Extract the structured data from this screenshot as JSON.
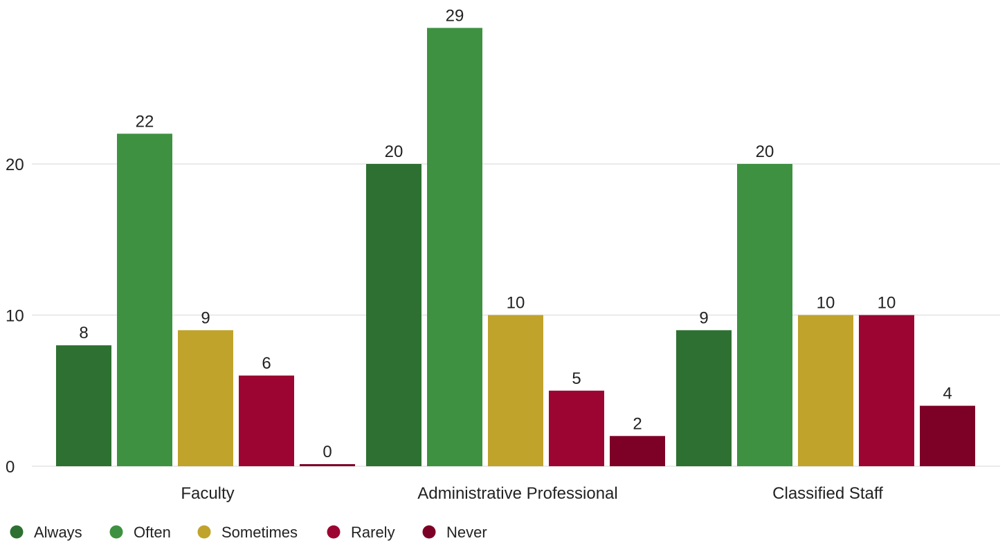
{
  "chart_data": {
    "type": "bar",
    "categories": [
      "Faculty",
      "Administrative Professional",
      "Classified Staff"
    ],
    "series": [
      {
        "name": "Always",
        "color": "#2e7031",
        "values": [
          8,
          20,
          9
        ]
      },
      {
        "name": "Often",
        "color": "#3e9140",
        "values": [
          22,
          29,
          20
        ]
      },
      {
        "name": "Sometimes",
        "color": "#c0a32b",
        "values": [
          9,
          10,
          10
        ]
      },
      {
        "name": "Rarely",
        "color": "#9c0431",
        "values": [
          6,
          5,
          10
        ]
      },
      {
        "name": "Never",
        "color": "#7d0127",
        "values": [
          0,
          2,
          4
        ]
      }
    ],
    "ylim": [
      0,
      30
    ],
    "yticks": [
      0,
      10,
      20
    ],
    "grid": true,
    "legend": "bottom-left",
    "title": "",
    "xlabel": "",
    "ylabel": ""
  }
}
